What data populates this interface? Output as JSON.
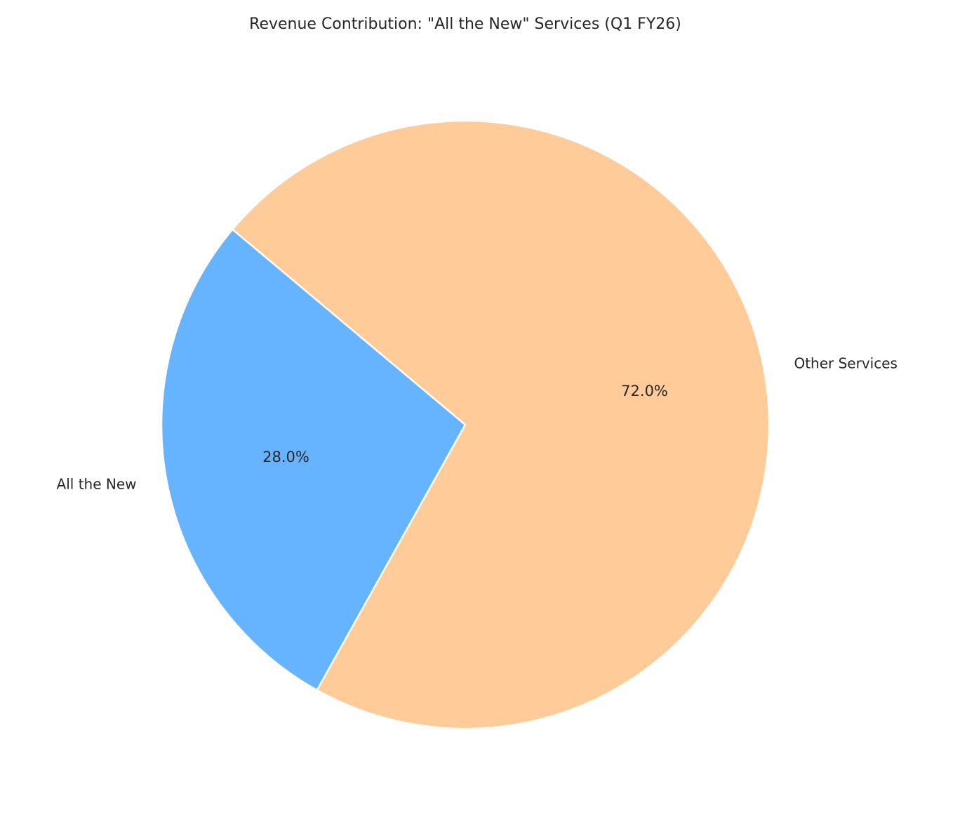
{
  "chart_data": {
    "type": "pie",
    "title": "Revenue Contribution: \"All the New\" Services (Q1 FY26)",
    "categories": [
      "All the New",
      "Other Services"
    ],
    "values": [
      28,
      72
    ],
    "value_labels": [
      "28.0%",
      "72.0%"
    ],
    "colors": [
      "#66b3ff",
      "#ffcc99"
    ]
  }
}
